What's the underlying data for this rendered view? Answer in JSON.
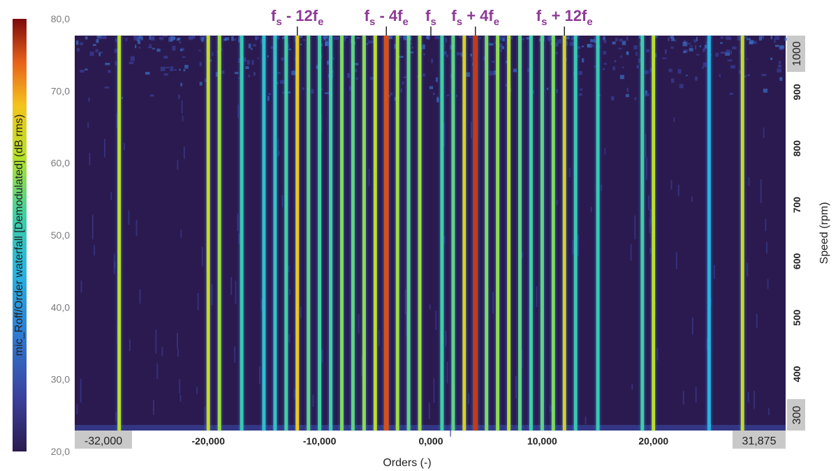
{
  "chart_data": {
    "type": "heatmap",
    "title": "",
    "xlabel": "Orders (-)",
    "ylabel_right": "Speed (rpm)",
    "colorbar_label": "mic_Roff/Order waterfall [Demodulated] (dB rms)",
    "colorbar_range": [
      20,
      80
    ],
    "colorbar_ticks": [
      "20,0",
      "30,0",
      "40,0",
      "50,0",
      "60,0",
      "70,0",
      "80,0"
    ],
    "colormap": [
      "#2b1a4f",
      "#3a3f9a",
      "#2f7fd6",
      "#28b6e0",
      "#3fd0a0",
      "#b6e02a",
      "#f4c41c",
      "#e8601a",
      "#9a1010"
    ],
    "background_color": "#2b1a4f",
    "xlim": [
      -32,
      31.875
    ],
    "x_ticks": [
      "-20,000",
      "-10,000",
      "0,000",
      "10,000",
      "20,000"
    ],
    "x_tick_values": [
      -20,
      -10,
      0,
      10,
      20
    ],
    "x_end_labels": [
      "-32,000",
      "31,875"
    ],
    "speed_range_rpm": [
      300,
      1000
    ],
    "speed_ticks": [
      "400",
      "500",
      "600",
      "700",
      "800",
      "900"
    ],
    "speed_tick_values": [
      400,
      500,
      600,
      700,
      800,
      900
    ],
    "speed_end_labels": [
      "300",
      "1000"
    ],
    "lines": [
      {
        "order": -28,
        "level": 58
      },
      {
        "order": -20,
        "level": 60
      },
      {
        "order": -19,
        "level": 56
      },
      {
        "order": -17,
        "level": 48
      },
      {
        "order": -15,
        "level": 45
      },
      {
        "order": -14,
        "level": 46
      },
      {
        "order": -13,
        "level": 50
      },
      {
        "order": -12,
        "level": 64
      },
      {
        "order": -11,
        "level": 52
      },
      {
        "order": -10,
        "level": 50
      },
      {
        "order": -9,
        "level": 50
      },
      {
        "order": -8,
        "level": 54
      },
      {
        "order": -7,
        "level": 52
      },
      {
        "order": -6,
        "level": 55
      },
      {
        "order": -5,
        "level": 58
      },
      {
        "order": -4,
        "level": 74
      },
      {
        "order": -3,
        "level": 56
      },
      {
        "order": -2,
        "level": 52
      },
      {
        "order": -1,
        "level": 56
      },
      {
        "order": 1,
        "level": 50
      },
      {
        "order": 2,
        "level": 52
      },
      {
        "order": 3,
        "level": 62
      },
      {
        "order": 4,
        "level": 76
      },
      {
        "order": 5,
        "level": 54
      },
      {
        "order": 6,
        "level": 55
      },
      {
        "order": 7,
        "level": 58
      },
      {
        "order": 8,
        "level": 52
      },
      {
        "order": 9,
        "level": 50
      },
      {
        "order": 10,
        "level": 52
      },
      {
        "order": 11,
        "level": 54
      },
      {
        "order": 12,
        "level": 62
      },
      {
        "order": 13,
        "level": 48
      },
      {
        "order": 15,
        "level": 48
      },
      {
        "order": 19,
        "level": 50
      },
      {
        "order": 20,
        "level": 58
      },
      {
        "order": 25,
        "level": 42
      },
      {
        "order": 28,
        "level": 60
      }
    ],
    "annotations": [
      {
        "base": "f",
        "sub": "s",
        "op": " - 12",
        "base2": "f",
        "sub2": "e",
        "order": -12
      },
      {
        "base": "f",
        "sub": "s",
        "op": " - 4",
        "base2": "f",
        "sub2": "e",
        "order": -4
      },
      {
        "base": "f",
        "sub": "s",
        "op": "",
        "base2": "",
        "sub2": "",
        "order": 0
      },
      {
        "base": "f",
        "sub": "s",
        "op": " + 4",
        "base2": "f",
        "sub2": "e",
        "order": 4
      },
      {
        "base": "f",
        "sub": "s",
        "op": " + 12",
        "base2": "f",
        "sub2": "e",
        "order": 12
      }
    ]
  }
}
